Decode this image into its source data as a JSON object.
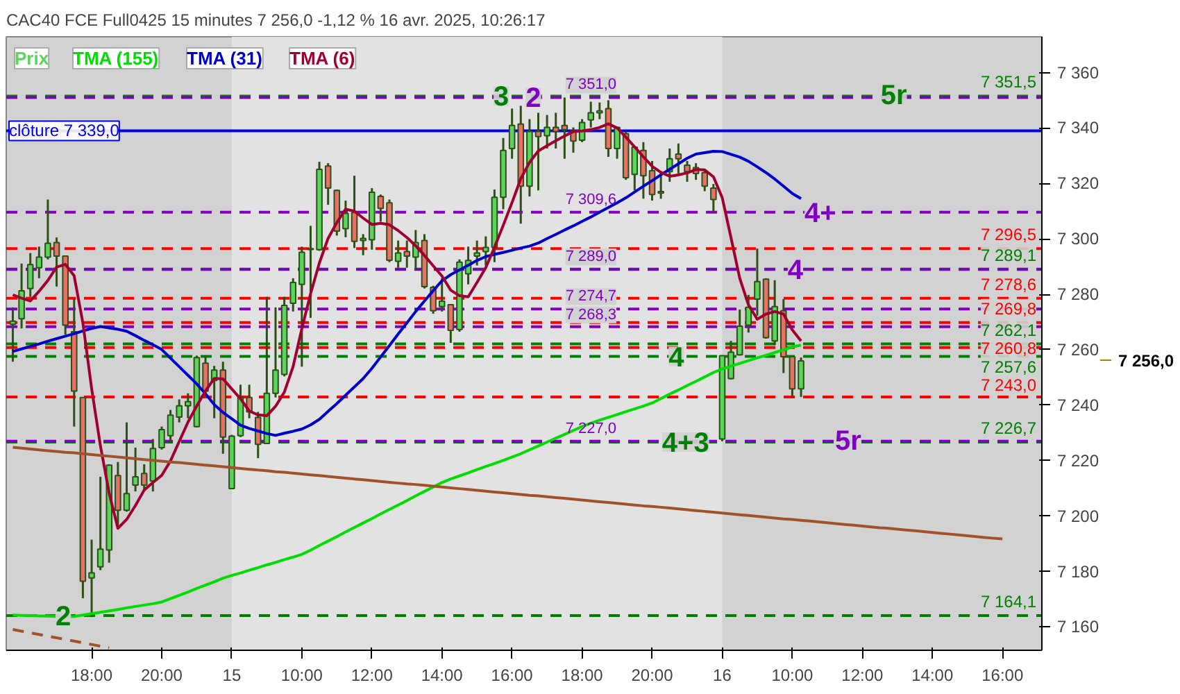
{
  "chart_data": {
    "type": "candlestick",
    "title": "CAC40 FCE Full0425 15 minutes 7 256,0 -1,12 % 16 avr. 2025, 10:26:17",
    "categories": [
      null,
      null,
      null,
      null,
      null,
      null,
      null,
      null,
      null,
      "18:00",
      null,
      null,
      null,
      null,
      null,
      null,
      null,
      "20:00",
      null,
      null,
      null,
      null,
      null,
      null,
      null,
      "15",
      null,
      null,
      null,
      null,
      null,
      null,
      null,
      "10:00",
      null,
      null,
      null,
      null,
      null,
      null,
      null,
      "12:00",
      null,
      null,
      null,
      null,
      null,
      null,
      null,
      "14:00",
      null,
      null,
      null,
      null,
      null,
      null,
      null,
      "16:00",
      null,
      null,
      null,
      null,
      null,
      null,
      null,
      "18:00",
      null,
      null,
      null,
      null,
      null,
      null,
      null,
      "20:00",
      null,
      null,
      null,
      null,
      null,
      null,
      null,
      "16",
      null,
      null,
      null,
      null,
      null,
      null,
      null,
      "10:00",
      null,
      null,
      null,
      null,
      null,
      null,
      null,
      "12:00",
      null,
      null,
      null,
      null,
      null,
      null,
      null,
      "14:00",
      null,
      null,
      null,
      null,
      null,
      null,
      null,
      "16:00"
    ],
    "ylim": [
      7151.6,
      7372.9
    ],
    "yticks": [
      {
        "value": 7160,
        "label": "7 160"
      },
      {
        "value": 7180,
        "label": "7 180"
      },
      {
        "value": 7200,
        "label": "7 200"
      },
      {
        "value": 7220,
        "label": "7 220"
      },
      {
        "value": 7240,
        "label": "7 240"
      },
      {
        "value": 7260,
        "label": "7 260"
      },
      {
        "value": 7280,
        "label": "7 280"
      },
      {
        "value": 7300,
        "label": "7 300"
      },
      {
        "value": 7320,
        "label": "7 320"
      },
      {
        "value": 7340,
        "label": "7 340"
      },
      {
        "value": 7360,
        "label": "7 360"
      }
    ],
    "legend": "top left",
    "bands": [
      {
        "axis": "x",
        "from": "15",
        "to": "16",
        "color": "#e2e2e2"
      }
    ],
    "ref_lines": [
      {
        "axis": "y",
        "value": 7339.0,
        "label": "clôture 7 339,0",
        "color": "#0000ee",
        "line_style": "solid"
      },
      {
        "axis": "y",
        "value": 7351.5,
        "label": "7 351,5",
        "color": "#008000",
        "line_style": "dashed"
      },
      {
        "axis": "y",
        "value": 7289.1,
        "label": "7 289,1",
        "color": "#008000",
        "line_style": "dashed"
      },
      {
        "axis": "y",
        "value": 7262.1,
        "label": "7 262,1",
        "color": "#008000",
        "line_style": "dashed"
      },
      {
        "axis": "y",
        "value": 7257.6,
        "label": "7 257,6",
        "color": "#008000",
        "line_style": "dashed"
      },
      {
        "axis": "y",
        "value": 7226.7,
        "label": "7 226,7",
        "color": "#008000",
        "line_style": "dashed"
      },
      {
        "axis": "y",
        "value": 7164.1,
        "label": "7 164,1",
        "color": "#008000",
        "line_style": "dashed"
      },
      {
        "axis": "y",
        "value": 7351.0,
        "label": "7 351,0",
        "color": "#8000c0",
        "line_style": "dashed"
      },
      {
        "axis": "y",
        "value": 7309.6,
        "label": "7 309,6",
        "color": "#8000c0",
        "line_style": "dashed"
      },
      {
        "axis": "y",
        "value": 7289.0,
        "label": "7 289,0",
        "color": "#8000c0",
        "line_style": "dashed"
      },
      {
        "axis": "y",
        "value": 7274.7,
        "label": "7 274,7",
        "color": "#8000c0",
        "line_style": "dashed"
      },
      {
        "axis": "y",
        "value": 7268.3,
        "label": "7 268,3",
        "color": "#8000c0",
        "line_style": "dashed"
      },
      {
        "axis": "y",
        "value": 7227.0,
        "label": "7 227,0",
        "color": "#8000c0",
        "line_style": "dashed"
      },
      {
        "axis": "y",
        "value": 7296.5,
        "label": "7 296,5",
        "color": "#ff0000",
        "line_style": "dashed"
      },
      {
        "axis": "y",
        "value": 7278.6,
        "label": "7 278,6",
        "color": "#ff0000",
        "line_style": "dashed"
      },
      {
        "axis": "y",
        "value": 7269.8,
        "label": "7 269,8",
        "color": "#ff0000",
        "line_style": "dashed"
      },
      {
        "axis": "y",
        "value": 7260.8,
        "label": "7 260,8",
        "color": "#ff0000",
        "line_style": "dashed"
      },
      {
        "axis": "y",
        "value": 7243.0,
        "label": "7 243,0",
        "color": "#ff0000",
        "line_style": "dashed"
      }
    ],
    "annotations": [
      {
        "text": "3",
        "y": 7351.5
      },
      {
        "text": "2",
        "y": 7351.0
      },
      {
        "text": "5r",
        "y": 7351.5
      },
      {
        "text": "4+",
        "y": 7309.6
      },
      {
        "text": "4",
        "y": 7289.0
      },
      {
        "text": "4",
        "y": 7257.6
      },
      {
        "text": "4+3",
        "y": 7226.7
      },
      {
        "text": "5r",
        "y": 7227.0
      },
      {
        "text": "2",
        "y": 7164.1
      },
      "7 256,0"
    ],
    "series": [
      {
        "name": "Prix",
        "ohlc": [
          [
            7269.2,
            7275.3,
            7255.7,
            7270.3
          ],
          [
            7271.2,
            7291.1,
            7267.7,
            7281.3
          ],
          [
            7282.1,
            7294.9,
            7279.1,
            7290.7
          ],
          [
            7289.6,
            7297.2,
            7285.8,
            7293.4
          ],
          [
            7293.4,
            7314.2,
            7292.6,
            7298.4
          ],
          [
            7298.7,
            7300.5,
            7282.8,
            7293.8
          ],
          [
            7293.8,
            7293.8,
            7265.5,
            7268.9
          ],
          [
            7266.5,
            7278.3,
            7232.3,
            7245.1
          ],
          [
            7242.8,
            7242.8,
            7170.4,
            7176.5
          ],
          [
            7177.7,
            7191.5,
            7163.6,
            7179.5
          ],
          [
            7181.7,
            7214.2,
            7180.5,
            7188.1
          ],
          [
            7187.8,
            7218.7,
            7183.2,
            7218.4
          ],
          [
            7214.6,
            7219.5,
            7196.8,
            7202.1
          ],
          [
            7202.1,
            7233.8,
            7201.6,
            7208.1
          ],
          [
            7211.2,
            7224.7,
            7208.9,
            7214.2
          ],
          [
            7215.4,
            7218.7,
            7209.6,
            7211.2
          ],
          [
            7212.7,
            7227.8,
            7208.9,
            7224.4
          ],
          [
            7224.7,
            7232.3,
            7224.0,
            7231.2
          ],
          [
            7229.0,
            7238.3,
            7226.5,
            7236.4
          ],
          [
            7235.7,
            7242.1,
            7233.8,
            7239.8
          ],
          [
            7239.8,
            7244.3,
            7235.3,
            7241.3
          ],
          [
            7232.3,
            7257.9,
            7232.0,
            7257.2
          ],
          [
            7255.2,
            7257.9,
            7243.6,
            7245.1
          ],
          [
            7248.9,
            7254.2,
            7235.3,
            7252.7
          ],
          [
            7252.7,
            7255.7,
            7222.5,
            7228.5
          ],
          [
            7209.9,
            7229.3,
            7209.9,
            7228.8
          ],
          [
            7229.0,
            7247.4,
            7228.5,
            7242.8
          ],
          [
            7242.8,
            7247.4,
            7235.3,
            7237.6
          ],
          [
            7235.6,
            7237.6,
            7220.9,
            7225.9
          ],
          [
            7226.2,
            7279.1,
            7226.2,
            7244.3
          ],
          [
            7244.3,
            7275.3,
            7242.8,
            7252.7
          ],
          [
            7251.1,
            7279.1,
            7250.4,
            7276.0
          ],
          [
            7276.8,
            7285.8,
            7273.8,
            7284.3
          ],
          [
            7283.6,
            7297.2,
            7253.9,
            7295.2
          ],
          [
            7296.2,
            7304.7,
            7271.5,
            7296.5
          ],
          [
            7296.1,
            7327.8,
            7295.7,
            7325.1
          ],
          [
            7326.3,
            7327.3,
            7312.3,
            7318.3
          ],
          [
            7317.5,
            7317.8,
            7301.2,
            7302.8
          ],
          [
            7303.7,
            7313.8,
            7300.6,
            7309.2
          ],
          [
            7309.5,
            7322.8,
            7296.7,
            7299.1
          ],
          [
            7299.4,
            7301.7,
            7294.1,
            7300.2
          ],
          [
            7299.7,
            7318.3,
            7296.1,
            7316.8
          ],
          [
            7315.3,
            7316.0,
            7306.2,
            7311.0
          ],
          [
            7313.0,
            7314.2,
            7291.6,
            7292.3
          ],
          [
            7291.9,
            7299.4,
            7289.6,
            7294.9
          ],
          [
            7295.4,
            7299.4,
            7289.6,
            7293.8
          ],
          [
            7293.4,
            7303.2,
            7288.9,
            7298.7
          ],
          [
            7299.4,
            7301.7,
            7282.1,
            7282.8
          ],
          [
            7282.5,
            7283.1,
            7273.0,
            7274.1
          ],
          [
            7275.6,
            7285.8,
            7273.8,
            7277.5
          ],
          [
            7276.3,
            7276.3,
            7262.5,
            7267.0
          ],
          [
            7267.3,
            7292.6,
            7266.5,
            7291.6
          ],
          [
            7287.4,
            7297.2,
            7283.6,
            7292.2
          ],
          [
            7293.8,
            7299.4,
            7290.4,
            7294.9
          ],
          [
            7295.4,
            7300.9,
            7290.4,
            7296.9
          ],
          [
            7296.9,
            7317.8,
            7291.6,
            7315.0
          ],
          [
            7315.0,
            7336.4,
            7310.7,
            7331.9
          ],
          [
            7332.6,
            7347.0,
            7328.9,
            7340.9
          ],
          [
            7341.4,
            7348.0,
            7305.5,
            7319.0
          ],
          [
            7319.0,
            7343.2,
            7315.3,
            7338.7
          ],
          [
            7338.7,
            7345.5,
            7317.5,
            7336.9
          ],
          [
            7337.2,
            7344.7,
            7332.6,
            7340.2
          ],
          [
            7340.2,
            7345.5,
            7332.6,
            7338.7
          ],
          [
            7340.9,
            7351.0,
            7328.9,
            7339.4
          ],
          [
            7339.0,
            7340.2,
            7331.1,
            7335.3
          ],
          [
            7335.6,
            7343.2,
            7334.9,
            7342.0
          ],
          [
            7342.9,
            7349.5,
            7340.2,
            7345.5
          ],
          [
            7345.5,
            7349.2,
            7343.2,
            7346.2
          ],
          [
            7347.0,
            7350.0,
            7329.6,
            7332.6
          ],
          [
            7332.6,
            7340.2,
            7328.9,
            7340.2
          ],
          [
            7337.9,
            7338.7,
            7321.3,
            7322.1
          ],
          [
            7323.3,
            7333.4,
            7317.5,
            7333.1
          ],
          [
            7331.9,
            7334.9,
            7314.5,
            7322.8
          ],
          [
            7324.6,
            7328.1,
            7313.8,
            7316.0
          ],
          [
            7316.5,
            7324.3,
            7314.5,
            7317.1
          ],
          [
            7324.3,
            7332.6,
            7320.6,
            7328.9
          ],
          [
            7330.6,
            7334.4,
            7323.6,
            7328.9
          ],
          [
            7326.6,
            7328.1,
            7320.6,
            7324.3
          ],
          [
            7325.7,
            7327.3,
            7321.3,
            7323.6
          ],
          [
            7323.9,
            7325.1,
            7317.2,
            7319.0
          ],
          [
            7318.3,
            7319.8,
            7309.6,
            7314.2
          ],
          [
            7227.8,
            7257.9,
            7227.0,
            7257.9
          ],
          [
            7249.6,
            7263.2,
            7249.3,
            7259.1
          ],
          [
            7258.2,
            7274.5,
            7257.9,
            7268.5
          ],
          [
            7268.9,
            7279.8,
            7266.2,
            7275.3
          ],
          [
            7278.3,
            7296.5,
            7272.3,
            7284.6
          ],
          [
            7285.5,
            7285.8,
            7264.0,
            7264.4
          ],
          [
            7263.2,
            7285.1,
            7261.7,
            7275.6
          ],
          [
            7274.1,
            7278.3,
            7251.6,
            7257.5
          ],
          [
            7257.5,
            7257.5,
            7243.0,
            7245.9
          ],
          [
            7245.9,
            7257.2,
            7243.0,
            7256.0
          ],
          null,
          null,
          null,
          null,
          null,
          null,
          null,
          null,
          null,
          null,
          null,
          null,
          null,
          null,
          null,
          null,
          null,
          null,
          null,
          null,
          null,
          null,
          null
        ],
        "colors": [
          "#5ad45a",
          "#5ad45a",
          "#5ad45a",
          "#5ad45a",
          "#5ad45a",
          "#e87068",
          "#e87068",
          "#e87068",
          "#e87068",
          "#5ad45a",
          "#5ad45a",
          "#5ad45a",
          "#e87068",
          "#5ad45a",
          "#5ad45a",
          "#e87068",
          "#5ad45a",
          "#5ad45a",
          "#5ad45a",
          "#5ad45a",
          "#5ad45a",
          "#5ad45a",
          "#e87068",
          "#5ad45a",
          "#e87068",
          "#5ad45a",
          "#5ad45a",
          "#e87068",
          "#e87068",
          "#5ad45a",
          "#5ad45a",
          "#5ad45a",
          "#5ad45a",
          "#5ad45a",
          "#5ad45a",
          "#5ad45a",
          "#e87068",
          "#e87068",
          "#5ad45a",
          "#e87068",
          "#5ad45a",
          "#5ad45a",
          "#e87068",
          "#e87068",
          "#5ad45a",
          "#e87068",
          "#5ad45a",
          "#e87068",
          "#e87068",
          "#5ad45a",
          "#e87068",
          "#5ad45a",
          "#5ad45a",
          "#5ad45a",
          "#5ad45a",
          "#5ad45a",
          "#5ad45a",
          "#5ad45a",
          "#e87068",
          "#5ad45a",
          "#e87068",
          "#5ad45a",
          "#e87068",
          "#e87068",
          "#e87068",
          "#5ad45a",
          "#5ad45a",
          "#5ad45a",
          "#e87068",
          "#5ad45a",
          "#e87068",
          "#5ad45a",
          "#e87068",
          "#e87068",
          "#5ad45a",
          "#5ad45a",
          "#e87068",
          "#e87068",
          "#e87068",
          "#e87068",
          "#e87068",
          "#5ad45a",
          "#5ad45a",
          "#5ad45a",
          "#5ad45a",
          "#5ad45a",
          "#e87068",
          "#5ad45a",
          "#e87068",
          "#e87068",
          "#5ad45a",
          null,
          null,
          null,
          null,
          null,
          null,
          null,
          null,
          null,
          null,
          null,
          null,
          null,
          null,
          null,
          null,
          null,
          null,
          null,
          null,
          null,
          null,
          null
        ]
      },
      {
        "name": "TMA (155)",
        "type": "line",
        "color": "#00dd00",
        "values": [
          7164.3,
          7164.2,
          7164.1,
          7164.0,
          7163.9,
          7163.8,
          7163.7,
          7163.8,
          7164.3,
          7164.8,
          7165.3,
          7165.8,
          7166.3,
          7166.9,
          7167.4,
          7167.9,
          7168.4,
          7169.0,
          7170.2,
          7171.4,
          7172.6,
          7173.9,
          7175.1,
          7176.3,
          7177.6,
          7178.6,
          7179.5,
          7180.5,
          7181.4,
          7182.4,
          7183.3,
          7184.3,
          7185.2,
          7186.2,
          7187.7,
          7189.4,
          7191.0,
          7192.6,
          7194.3,
          7195.9,
          7197.5,
          7199.1,
          7200.8,
          7202.4,
          7204.0,
          7205.6,
          7207.3,
          7208.9,
          7210.5,
          7212.1,
          7213.4,
          7214.5,
          7215.6,
          7216.8,
          7217.9,
          7219.0,
          7220.1,
          7221.3,
          7222.5,
          7223.9,
          7225.3,
          7226.7,
          7228.1,
          7229.5,
          7230.9,
          7232.3,
          7233.5,
          7234.6,
          7235.6,
          7236.6,
          7237.7,
          7238.7,
          7239.7,
          7240.8,
          7242.4,
          7244.0,
          7245.5,
          7247.1,
          7248.6,
          7250.2,
          7251.8,
          7253.1,
          7254.1,
          7255.1,
          7256.1,
          7257.1,
          7258.0,
          7259.0,
          7260.0,
          7261.0,
          7261.7,
          null,
          null,
          null,
          null,
          null,
          null,
          null,
          null,
          null,
          null,
          null,
          null,
          null,
          null,
          null,
          null,
          null,
          null,
          null,
          null,
          null,
          null,
          null
        ]
      },
      {
        "name": "TMA (31)",
        "type": "line",
        "color": "#0000cc",
        "values": [
          7259.4,
          7260.3,
          7261.2,
          7262.1,
          7263.1,
          7264.0,
          7264.9,
          7265.8,
          7266.8,
          7267.7,
          7268.4,
          7267.9,
          7267.4,
          7266.7,
          7265.1,
          7263.4,
          7261.8,
          7260.1,
          7257.0,
          7253.9,
          7250.8,
          7247.7,
          7244.1,
          7240.2,
          7237.4,
          7235.1,
          7232.8,
          7231.6,
          7230.7,
          7229.8,
          7229.1,
          7229.9,
          7230.6,
          7231.4,
          7232.9,
          7234.9,
          7237.8,
          7240.6,
          7243.6,
          7246.6,
          7249.6,
          7253.3,
          7257.4,
          7261.5,
          7265.7,
          7269.7,
          7273.8,
          7277.6,
          7281.3,
          7284.9,
          7287.1,
          7288.8,
          7290.5,
          7292.2,
          7293.6,
          7294.4,
          7295.1,
          7295.9,
          7296.7,
          7297.4,
          7298.5,
          7300.1,
          7301.6,
          7303.2,
          7304.7,
          7306.3,
          7307.9,
          7309.6,
          7311.3,
          7313.0,
          7314.8,
          7316.9,
          7319.0,
          7321.0,
          7323.1,
          7325.1,
          7327.1,
          7329.1,
          7330.6,
          7331.1,
          7331.6,
          7331.5,
          7330.5,
          7329.5,
          7328.0,
          7326.0,
          7323.9,
          7321.6,
          7319.0,
          7316.4,
          7314.5,
          null,
          null,
          null,
          null,
          null,
          null,
          null,
          null,
          null,
          null,
          null,
          null,
          null,
          null,
          null,
          null,
          null,
          null,
          null,
          null,
          null,
          null,
          null
        ]
      },
      {
        "name": "TMA (6)",
        "type": "line",
        "color": "#a00030",
        "values": [
          7279.8,
          7278.6,
          7277.6,
          7281.1,
          7285.0,
          7289.8,
          7290.8,
          7286.7,
          7269.7,
          7246.0,
          7225.4,
          7208.3,
          7195.6,
          7198.8,
          7203.8,
          7209.4,
          7212.1,
          7214.7,
          7219.9,
          7226.9,
          7233.9,
          7239.7,
          7245.1,
          7249.7,
          7249.5,
          7245.9,
          7242.3,
          7237.9,
          7236.5,
          7236.2,
          7239.6,
          7244.7,
          7253.9,
          7267.6,
          7280.2,
          7291.3,
          7300.2,
          7305.9,
          7310.7,
          7310.0,
          7307.5,
          7305.2,
          7305.6,
          7305.1,
          7303.0,
          7300.5,
          7297.5,
          7294.0,
          7290.3,
          7286.6,
          7281.5,
          7279.5,
          7279.1,
          7284.3,
          7289.6,
          7297.0,
          7304.9,
          7313.1,
          7321.7,
          7327.6,
          7331.7,
          7333.6,
          7335.4,
          7337.1,
          7338.7,
          7338.9,
          7339.4,
          7340.2,
          7341.5,
          7340.0,
          7336.7,
          7333.2,
          7329.6,
          7326.2,
          7324.0,
          7322.6,
          7323.1,
          7323.8,
          7325.0,
          7324.9,
          7322.4,
          7314.9,
          7300.5,
          7285.8,
          7276.2,
          7271.0,
          7272.9,
          7273.8,
          7272.9,
          7267.2,
          7263.2,
          null,
          null,
          null,
          null,
          null,
          null,
          null,
          null,
          null,
          null,
          null,
          null,
          null,
          null,
          null,
          null,
          null,
          null,
          null,
          null,
          null,
          null,
          null
        ]
      },
      {
        "type": "line",
        "color": "#a0522d",
        "values": [
          7224.8,
          7224.5,
          7224.2,
          7223.9,
          7223.6,
          7223.3,
          7223.0,
          7222.8,
          7222.5,
          7222.2,
          7221.9,
          7221.6,
          7221.3,
          7221.0,
          7220.7,
          7220.4,
          7220.1,
          7219.8,
          7219.5,
          7219.3,
          7219.0,
          7218.7,
          7218.4,
          7218.1,
          7217.8,
          7217.5,
          7217.2,
          7216.9,
          7216.6,
          7216.4,
          7216.0,
          7215.8,
          7215.5,
          7215.2,
          7214.9,
          7214.6,
          7214.3,
          7214.0,
          7213.7,
          7213.4,
          7213.1,
          7212.8,
          7212.5,
          7212.2,
          7211.9,
          7211.6,
          7211.4,
          7211.1,
          7210.8,
          7210.5,
          7210.2,
          7209.9,
          7209.6,
          7209.3,
          7209.0,
          7208.7,
          7208.4,
          7208.1,
          7207.8,
          7207.5,
          7207.3,
          7207.0,
          7206.7,
          7206.4,
          7206.1,
          7205.8,
          7205.5,
          7205.2,
          7204.9,
          7204.6,
          7204.3,
          7204.0,
          7203.7,
          7203.5,
          7203.2,
          7202.9,
          7202.6,
          7202.3,
          7202.0,
          7201.7,
          7201.4,
          7201.1,
          7200.8,
          7200.5,
          7200.2,
          7199.9,
          7199.6,
          7199.3,
          7199.0,
          7198.8,
          7198.5,
          7198.2,
          7197.9,
          7197.6,
          7197.3,
          7197.0,
          7196.7,
          7196.4,
          7196.1,
          7195.8,
          7195.6,
          7195.3,
          7195.0,
          7194.7,
          7194.4,
          7194.1,
          7193.8,
          7193.5,
          7193.2,
          7192.9,
          7192.6,
          7192.3,
          7192.0,
          7191.8
        ]
      },
      {
        "type": "line",
        "color": "#a0522d",
        "line_style": "dashed",
        "values": [
          7159.1,
          7158.5,
          7157.9,
          7157.3,
          7156.7,
          7156.1,
          7155.5,
          7154.9,
          7154.3,
          7153.7,
          7153.1,
          7152.5,
          null,
          null,
          null,
          null,
          null,
          null,
          null,
          null,
          null,
          null,
          null,
          null,
          null,
          null,
          null,
          null,
          null,
          null,
          null,
          null,
          null,
          null,
          null,
          null,
          null,
          null,
          null,
          null,
          null,
          null,
          null,
          null,
          null,
          null,
          null,
          null,
          null,
          null,
          null,
          null,
          null,
          null,
          null,
          null,
          null,
          null,
          null,
          null,
          null,
          null,
          null,
          null,
          null,
          null,
          null,
          null,
          null,
          null,
          null,
          null,
          null,
          null,
          null,
          null,
          null,
          null,
          null,
          null,
          null,
          null,
          null,
          null,
          null,
          null,
          null,
          null,
          null,
          null,
          null,
          null,
          null,
          null,
          null,
          null,
          null,
          null,
          null,
          null,
          null,
          null,
          null,
          null,
          null,
          null,
          null,
          null,
          null,
          null,
          null,
          null,
          null,
          null
        ]
      }
    ]
  }
}
